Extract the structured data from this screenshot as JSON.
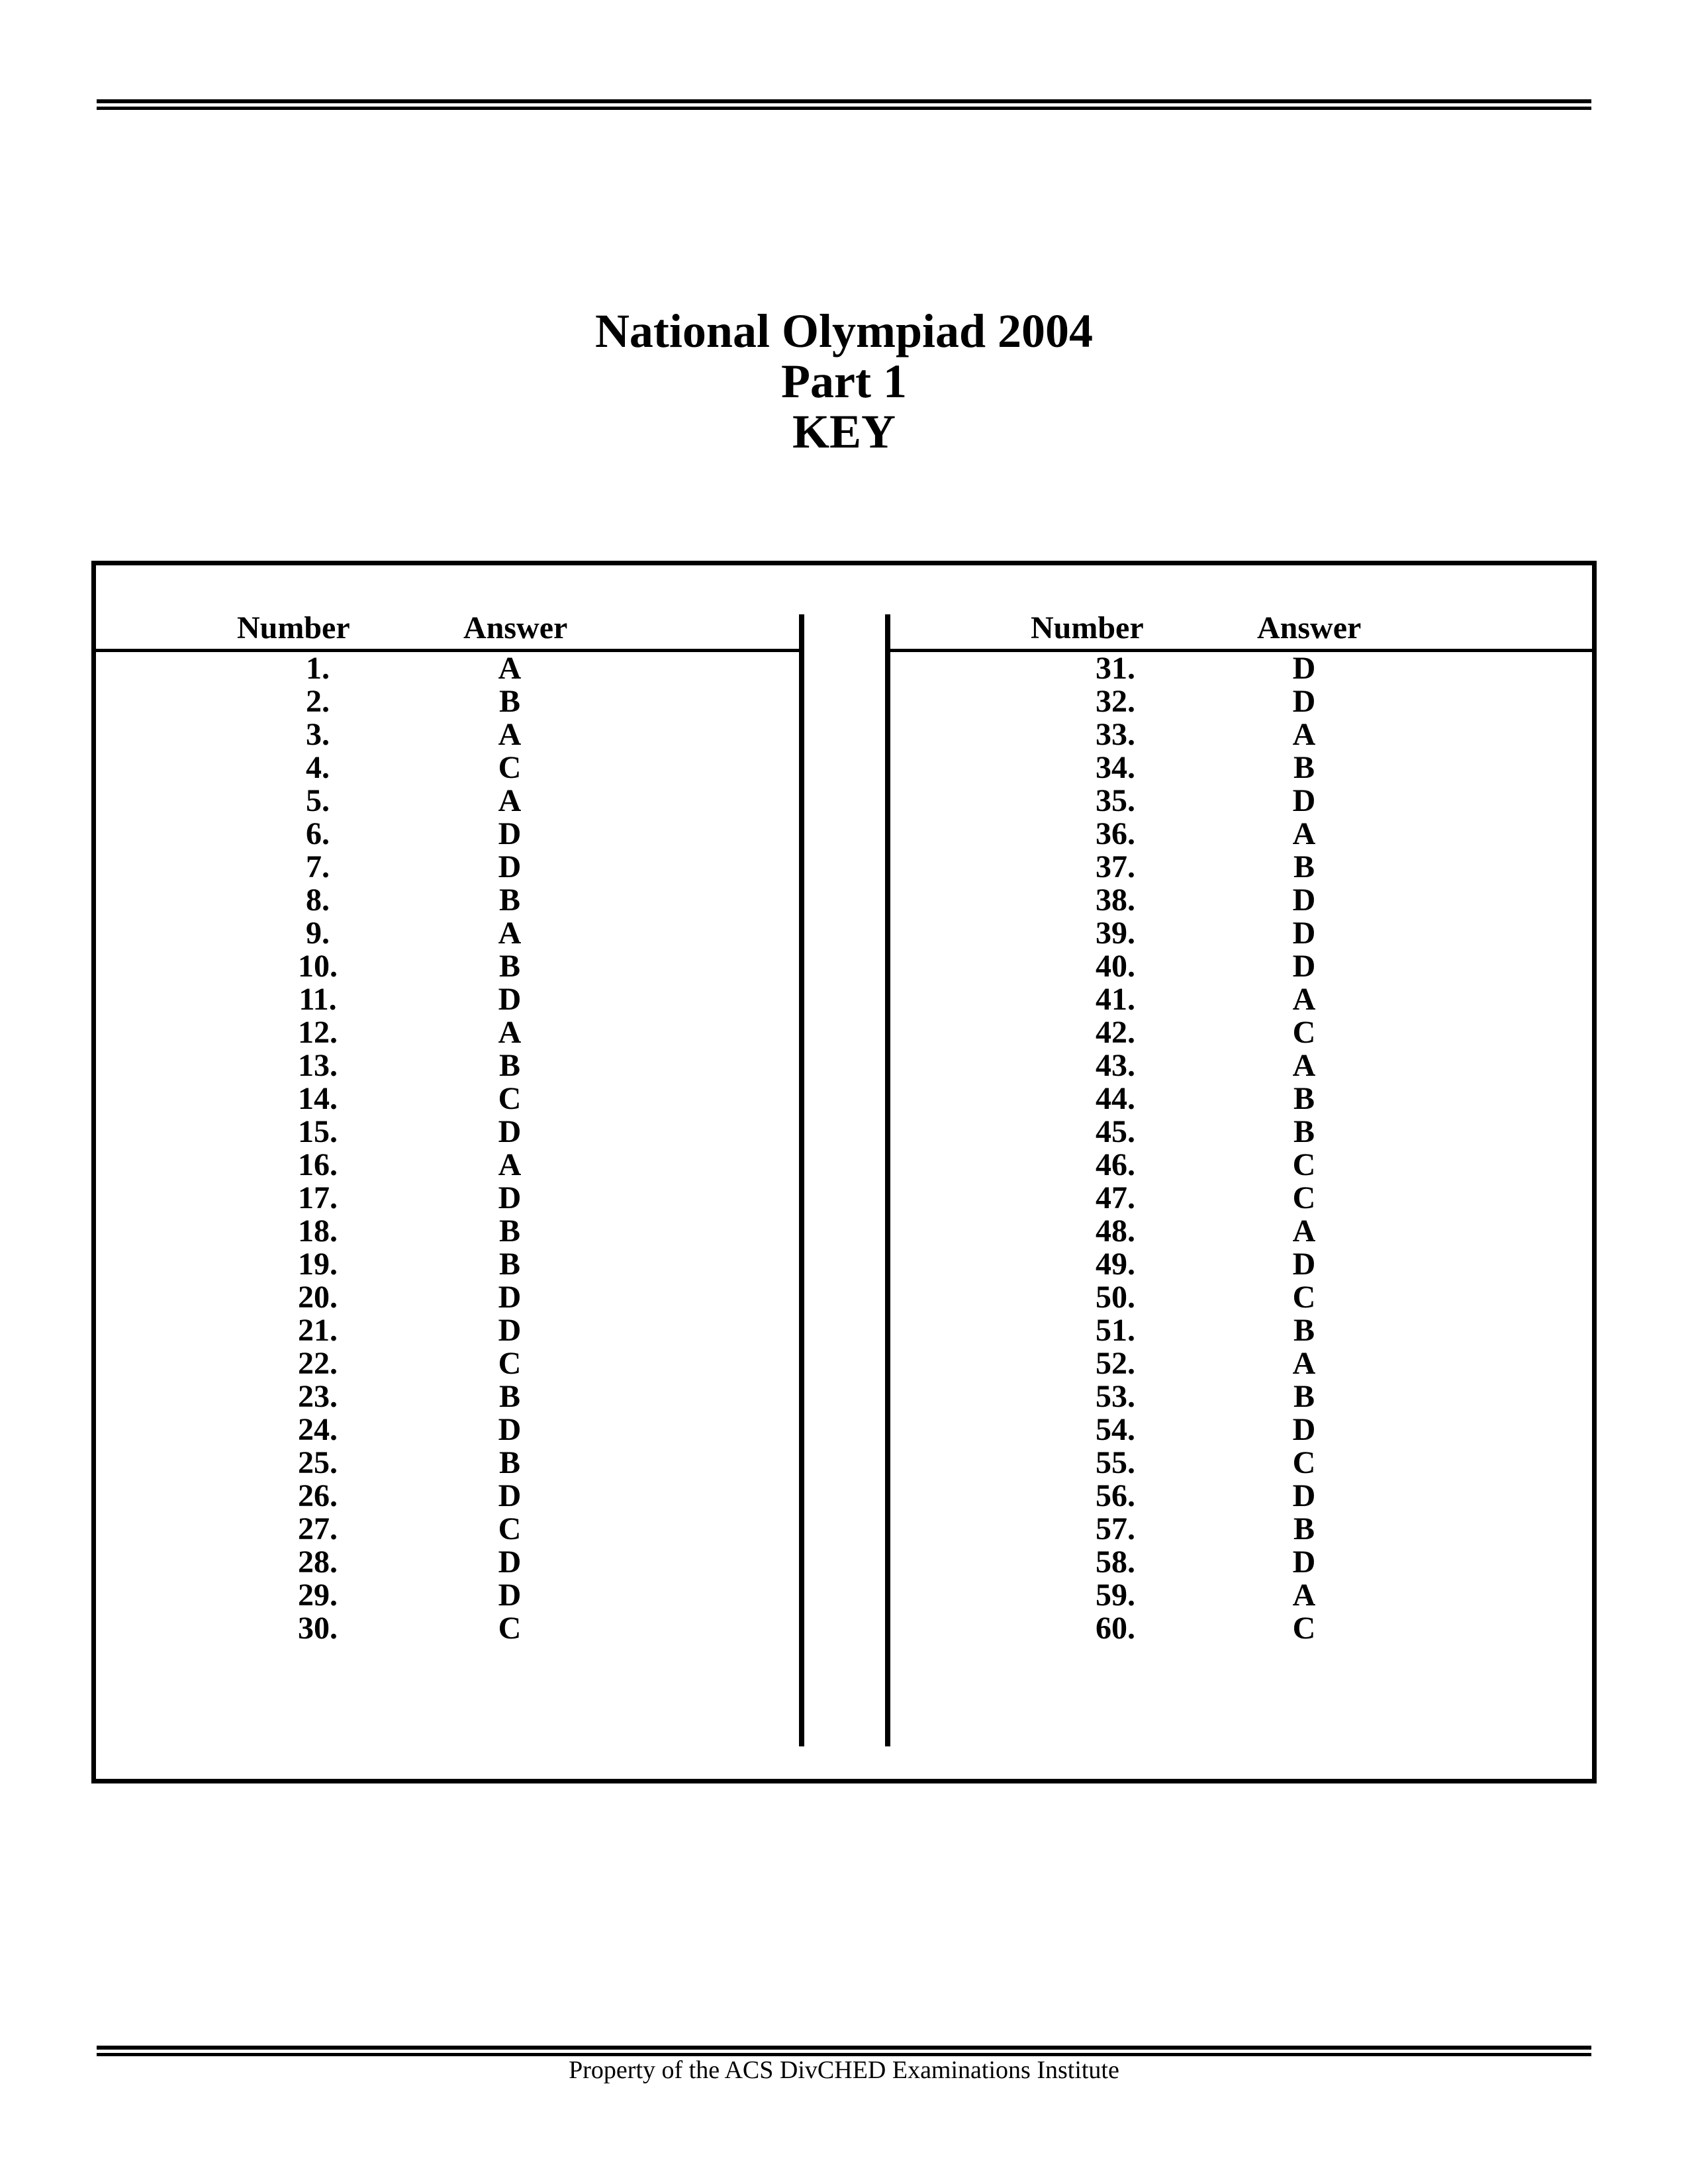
{
  "document": {
    "title_lines": [
      "National Olympiad 2004",
      "Part 1",
      "KEY"
    ],
    "footer": "Property of the ACS DivCHED Examinations Institute"
  },
  "key_table": {
    "columns": [
      {
        "header_number": "Number",
        "header_answer": "Answer",
        "rows": [
          {
            "number": "1.",
            "answer": "A"
          },
          {
            "number": "2.",
            "answer": "B"
          },
          {
            "number": "3.",
            "answer": "A"
          },
          {
            "number": "4.",
            "answer": "C"
          },
          {
            "number": "5.",
            "answer": "A"
          },
          {
            "number": "6.",
            "answer": "D"
          },
          {
            "number": "7.",
            "answer": "D"
          },
          {
            "number": "8.",
            "answer": "B"
          },
          {
            "number": "9.",
            "answer": "A"
          },
          {
            "number": "10.",
            "answer": "B"
          },
          {
            "number": "11.",
            "answer": "D"
          },
          {
            "number": "12.",
            "answer": "A"
          },
          {
            "number": "13.",
            "answer": "B"
          },
          {
            "number": "14.",
            "answer": "C"
          },
          {
            "number": "15.",
            "answer": "D"
          },
          {
            "number": "16.",
            "answer": "A"
          },
          {
            "number": "17.",
            "answer": "D"
          },
          {
            "number": "18.",
            "answer": "B"
          },
          {
            "number": "19.",
            "answer": "B"
          },
          {
            "number": "20.",
            "answer": "D"
          },
          {
            "number": "21.",
            "answer": "D"
          },
          {
            "number": "22.",
            "answer": "C"
          },
          {
            "number": "23.",
            "answer": "B"
          },
          {
            "number": "24.",
            "answer": "D"
          },
          {
            "number": "25.",
            "answer": "B"
          },
          {
            "number": "26.",
            "answer": "D"
          },
          {
            "number": "27.",
            "answer": "C"
          },
          {
            "number": "28.",
            "answer": "D"
          },
          {
            "number": "29.",
            "answer": "D"
          },
          {
            "number": "30.",
            "answer": "C"
          }
        ]
      },
      {
        "header_number": "Number",
        "header_answer": "Answer",
        "rows": [
          {
            "number": "31.",
            "answer": "D"
          },
          {
            "number": "32.",
            "answer": "D"
          },
          {
            "number": "33.",
            "answer": "A"
          },
          {
            "number": "34.",
            "answer": "B"
          },
          {
            "number": "35.",
            "answer": "D"
          },
          {
            "number": "36.",
            "answer": "A"
          },
          {
            "number": "37.",
            "answer": "B"
          },
          {
            "number": "38.",
            "answer": "D"
          },
          {
            "number": "39.",
            "answer": "D"
          },
          {
            "number": "40.",
            "answer": "D"
          },
          {
            "number": "41.",
            "answer": "A"
          },
          {
            "number": "42.",
            "answer": "C"
          },
          {
            "number": "43.",
            "answer": "A"
          },
          {
            "number": "44.",
            "answer": "B"
          },
          {
            "number": "45.",
            "answer": "B"
          },
          {
            "number": "46.",
            "answer": "C"
          },
          {
            "number": "47.",
            "answer": "C"
          },
          {
            "number": "48.",
            "answer": "A"
          },
          {
            "number": "49.",
            "answer": "D"
          },
          {
            "number": "50.",
            "answer": "C"
          },
          {
            "number": "51.",
            "answer": "B"
          },
          {
            "number": "52.",
            "answer": "A"
          },
          {
            "number": "53.",
            "answer": "B"
          },
          {
            "number": "54.",
            "answer": "D"
          },
          {
            "number": "55.",
            "answer": "C"
          },
          {
            "number": "56.",
            "answer": "D"
          },
          {
            "number": "57.",
            "answer": "B"
          },
          {
            "number": "58.",
            "answer": "D"
          },
          {
            "number": "59.",
            "answer": "A"
          },
          {
            "number": "60.",
            "answer": "C"
          }
        ]
      }
    ]
  }
}
